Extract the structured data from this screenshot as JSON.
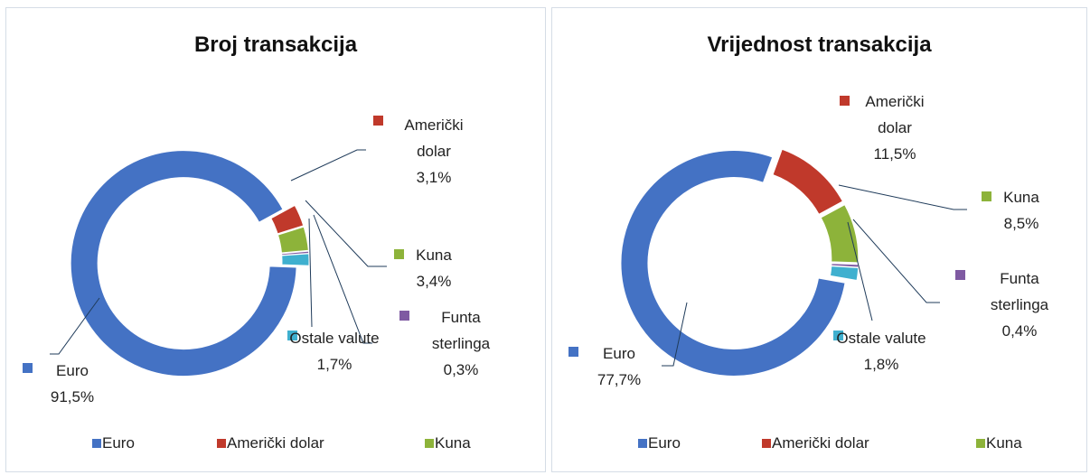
{
  "chart_data": [
    {
      "type": "pie",
      "donut": true,
      "title": "Broj transakcija",
      "categories": [
        "Euro",
        "Američki dolar",
        "Kuna",
        "Funta sterlinga",
        "Ostale valute"
      ],
      "values": [
        91.5,
        3.1,
        3.4,
        0.3,
        1.7
      ],
      "value_labels": [
        "91,5%",
        "3,1%",
        "3,4%",
        "0,3%",
        "1,7%"
      ],
      "colors": [
        "#4472c4",
        "#c0392b",
        "#8db33a",
        "#7f5aa2",
        "#3fb0cf"
      ]
    },
    {
      "type": "pie",
      "donut": true,
      "title": "Vrijednost transakcija",
      "categories": [
        "Euro",
        "Američki dolar",
        "Kuna",
        "Funta sterlinga",
        "Ostale valute"
      ],
      "values": [
        77.7,
        11.5,
        8.5,
        0.4,
        1.8
      ],
      "value_labels": [
        "77,7%",
        "11,5%",
        "8,5%",
        "0,4%",
        "1,8%"
      ],
      "colors": [
        "#4472c4",
        "#c0392b",
        "#8db33a",
        "#7f5aa2",
        "#3fb0cf"
      ]
    }
  ]
}
